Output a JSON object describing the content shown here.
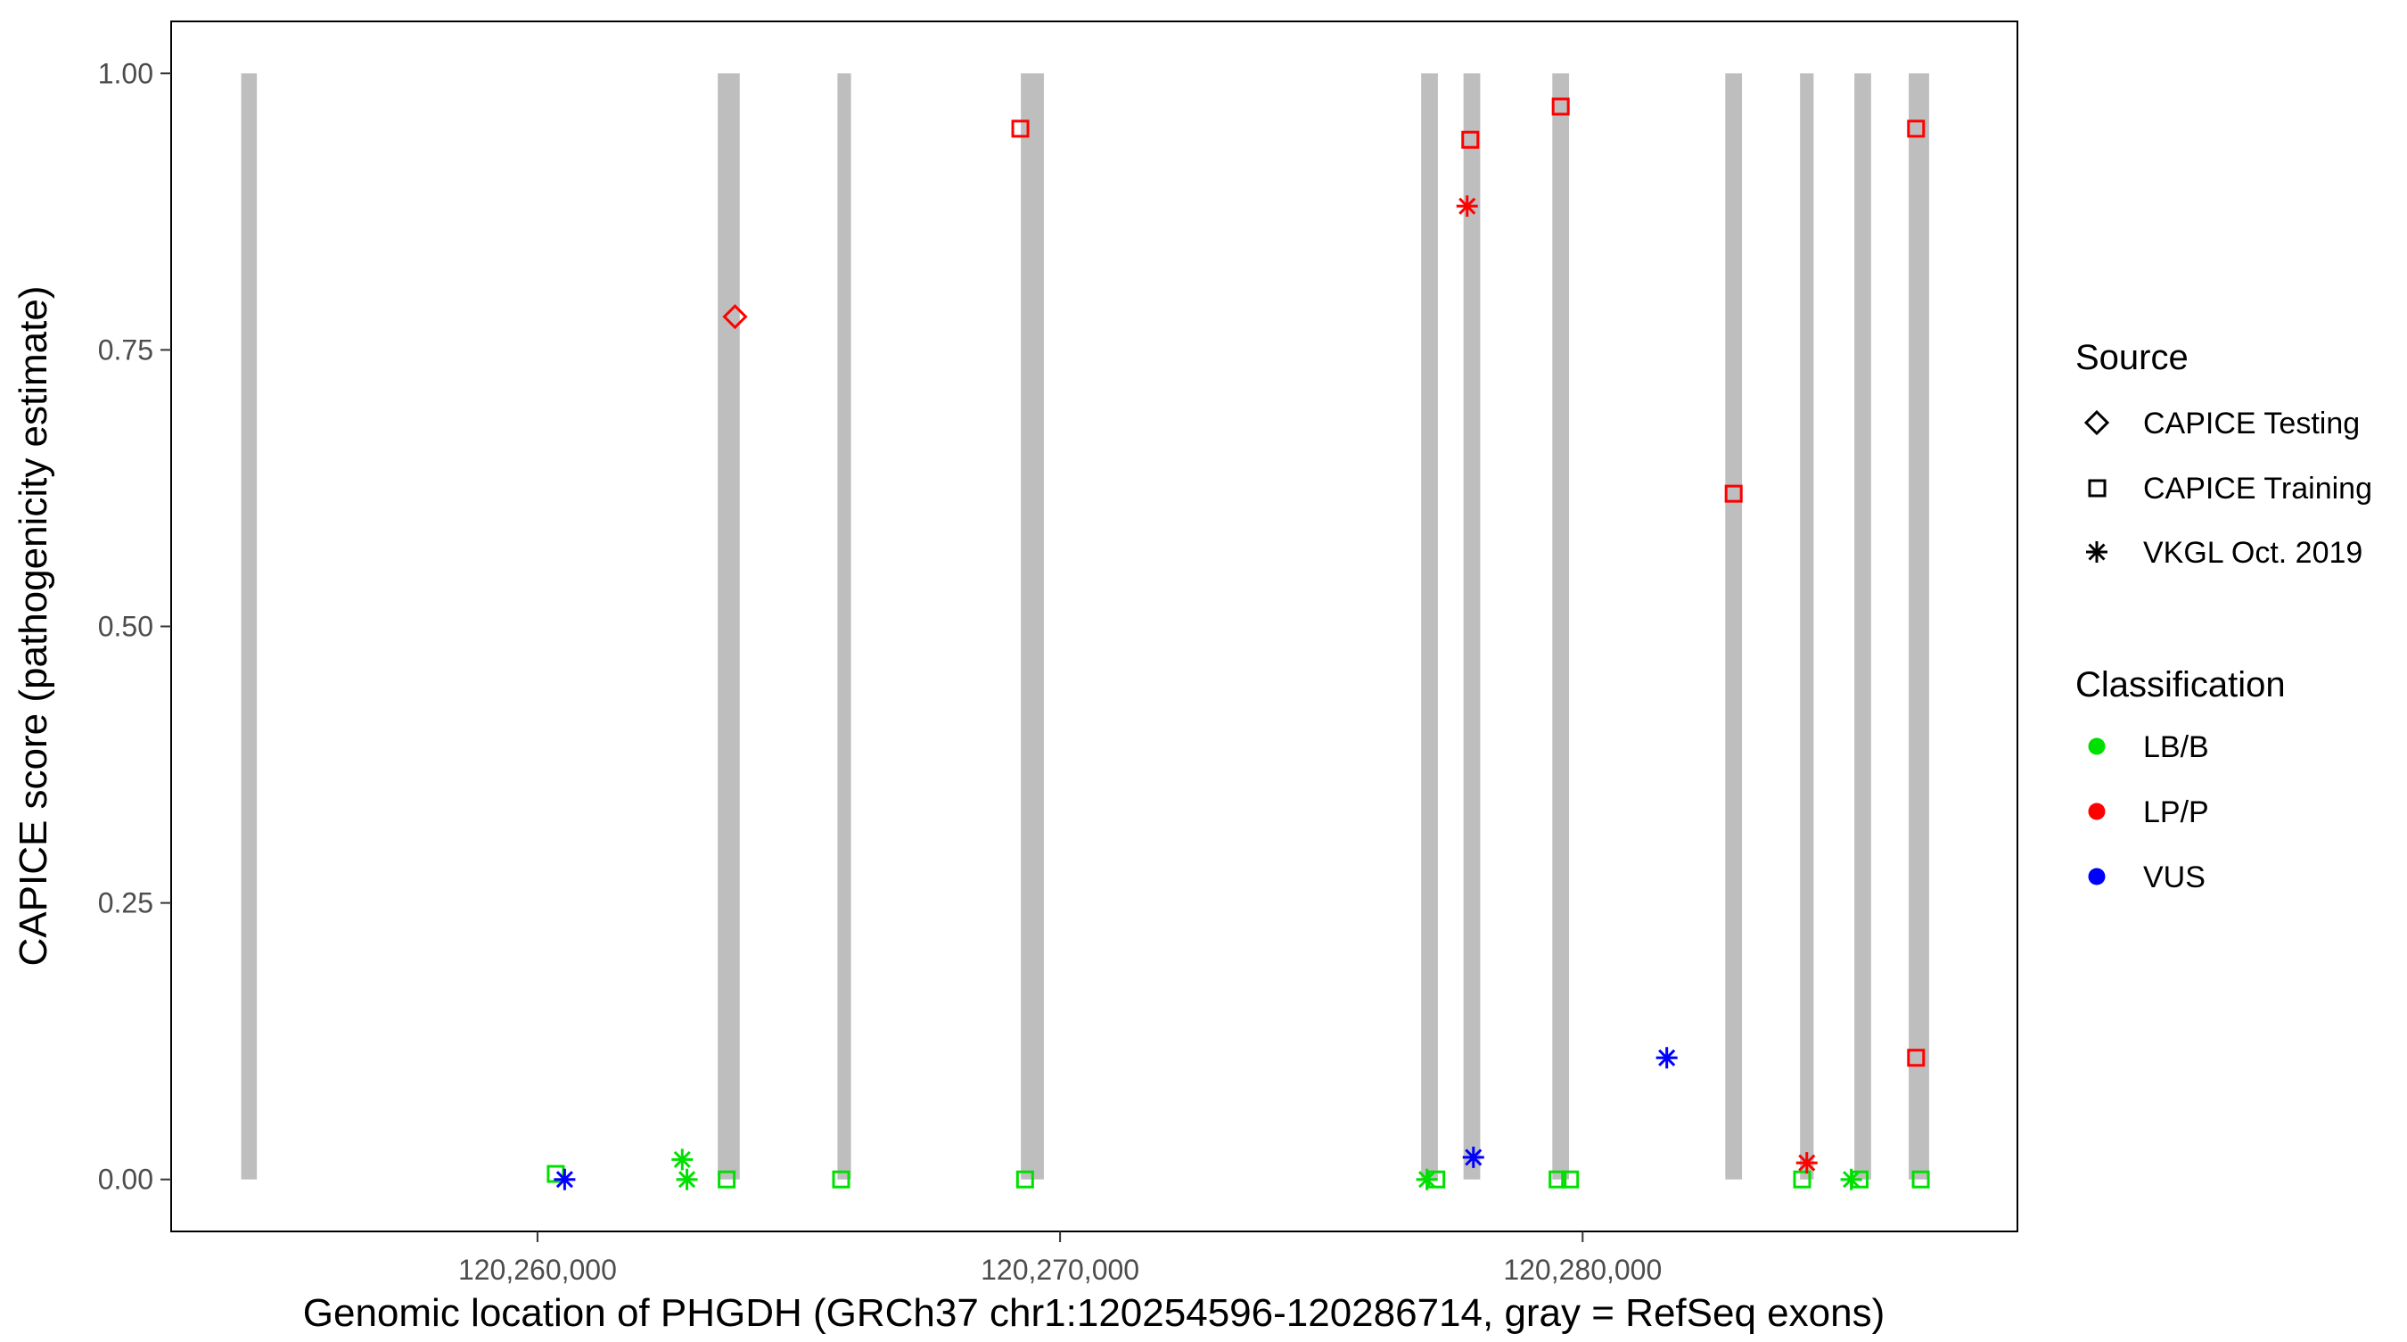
{
  "chart_data": {
    "type": "scatter",
    "title": "",
    "xlabel": "Genomic location of PHGDH (GRCh37 chr1:120254596-120286714, gray = RefSeq exons)",
    "ylabel": "CAPICE score (pathogenicity estimate)",
    "xlim": [
      120252990,
      120288320
    ],
    "ylim": [
      -0.047,
      1.047
    ],
    "grid": "off",
    "legend_position": "right",
    "x_ticks": [
      {
        "value": 120260000,
        "label": "120,260,000"
      },
      {
        "value": 120270000,
        "label": "120,270,000"
      },
      {
        "value": 120280000,
        "label": "120,280,000"
      }
    ],
    "y_ticks": [
      {
        "value": 0.0,
        "label": "0.00"
      },
      {
        "value": 0.25,
        "label": "0.25"
      },
      {
        "value": 0.5,
        "label": "0.50"
      },
      {
        "value": 0.75,
        "label": "0.75"
      },
      {
        "value": 1.0,
        "label": "1.00"
      }
    ],
    "colors": {
      "LB/B": "#00E000",
      "LP/P": "#FF0000",
      "VUS": "#0000FF",
      "exon": "#BEBEBE",
      "panel_border": "#000000",
      "tick": "#333333"
    },
    "exons": [
      {
        "start": 120254330,
        "end": 120254630
      },
      {
        "start": 120263450,
        "end": 120263870
      },
      {
        "start": 120265740,
        "end": 120266000
      },
      {
        "start": 120269250,
        "end": 120269690
      },
      {
        "start": 120276910,
        "end": 120277230
      },
      {
        "start": 120277720,
        "end": 120278040
      },
      {
        "start": 120279420,
        "end": 120279740
      },
      {
        "start": 120282730,
        "end": 120283050
      },
      {
        "start": 120284160,
        "end": 120284420
      },
      {
        "start": 120285200,
        "end": 120285520
      },
      {
        "start": 120286240,
        "end": 120286630
      }
    ],
    "points": [
      {
        "x": 120260350,
        "y": 0.005,
        "source": "CAPICE Training",
        "classification": "LB/B"
      },
      {
        "x": 120262770,
        "y": 0.018,
        "source": "VKGL Oct. 2019",
        "classification": "LB/B"
      },
      {
        "x": 120262860,
        "y": 0.0,
        "source": "VKGL Oct. 2019",
        "classification": "LB/B"
      },
      {
        "x": 120263620,
        "y": 0.0,
        "source": "CAPICE Training",
        "classification": "LB/B"
      },
      {
        "x": 120265810,
        "y": 0.0,
        "source": "CAPICE Training",
        "classification": "LB/B"
      },
      {
        "x": 120269330,
        "y": 0.0,
        "source": "CAPICE Training",
        "classification": "LB/B"
      },
      {
        "x": 120277020,
        "y": 0.0,
        "source": "VKGL Oct. 2019",
        "classification": "LB/B"
      },
      {
        "x": 120277200,
        "y": 0.0,
        "source": "CAPICE Training",
        "classification": "LB/B"
      },
      {
        "x": 120279520,
        "y": 0.0,
        "source": "CAPICE Training",
        "classification": "LB/B"
      },
      {
        "x": 120279760,
        "y": 0.0,
        "source": "CAPICE Training",
        "classification": "LB/B"
      },
      {
        "x": 120284200,
        "y": 0.0,
        "source": "CAPICE Training",
        "classification": "LB/B"
      },
      {
        "x": 120285140,
        "y": 0.0,
        "source": "VKGL Oct. 2019",
        "classification": "LB/B"
      },
      {
        "x": 120285300,
        "y": 0.0,
        "source": "CAPICE Training",
        "classification": "LB/B"
      },
      {
        "x": 120286470,
        "y": 0.0,
        "source": "CAPICE Training",
        "classification": "LB/B"
      },
      {
        "x": 120260520,
        "y": 0.0,
        "source": "VKGL Oct. 2019",
        "classification": "VUS"
      },
      {
        "x": 120277910,
        "y": 0.02,
        "source": "VKGL Oct. 2019",
        "classification": "VUS"
      },
      {
        "x": 120281610,
        "y": 0.11,
        "source": "VKGL Oct. 2019",
        "classification": "VUS"
      },
      {
        "x": 120263780,
        "y": 0.78,
        "source": "CAPICE Testing",
        "classification": "LP/P"
      },
      {
        "x": 120269240,
        "y": 0.95,
        "source": "CAPICE Training",
        "classification": "LP/P"
      },
      {
        "x": 120277850,
        "y": 0.94,
        "source": "CAPICE Training",
        "classification": "LP/P"
      },
      {
        "x": 120277790,
        "y": 0.88,
        "source": "VKGL Oct. 2019",
        "classification": "LP/P"
      },
      {
        "x": 120279580,
        "y": 0.97,
        "source": "CAPICE Training",
        "classification": "LP/P"
      },
      {
        "x": 120282890,
        "y": 0.62,
        "source": "CAPICE Training",
        "classification": "LP/P"
      },
      {
        "x": 120286380,
        "y": 0.95,
        "source": "CAPICE Training",
        "classification": "LP/P"
      },
      {
        "x": 120286380,
        "y": 0.11,
        "source": "CAPICE Training",
        "classification": "LP/P"
      },
      {
        "x": 120284290,
        "y": 0.015,
        "source": "VKGL Oct. 2019",
        "classification": "LP/P"
      }
    ],
    "legend": {
      "source": {
        "title": "Source",
        "items": [
          {
            "label": "CAPICE Testing",
            "shape": "diamond-open"
          },
          {
            "label": "CAPICE Training",
            "shape": "square-open"
          },
          {
            "label": "VKGL Oct. 2019",
            "shape": "asterisk"
          }
        ]
      },
      "classification": {
        "title": "Classification",
        "items": [
          {
            "label": "LB/B",
            "color_key": "LB/B"
          },
          {
            "label": "LP/P",
            "color_key": "LP/P"
          },
          {
            "label": "VUS",
            "color_key": "VUS"
          }
        ]
      }
    }
  }
}
